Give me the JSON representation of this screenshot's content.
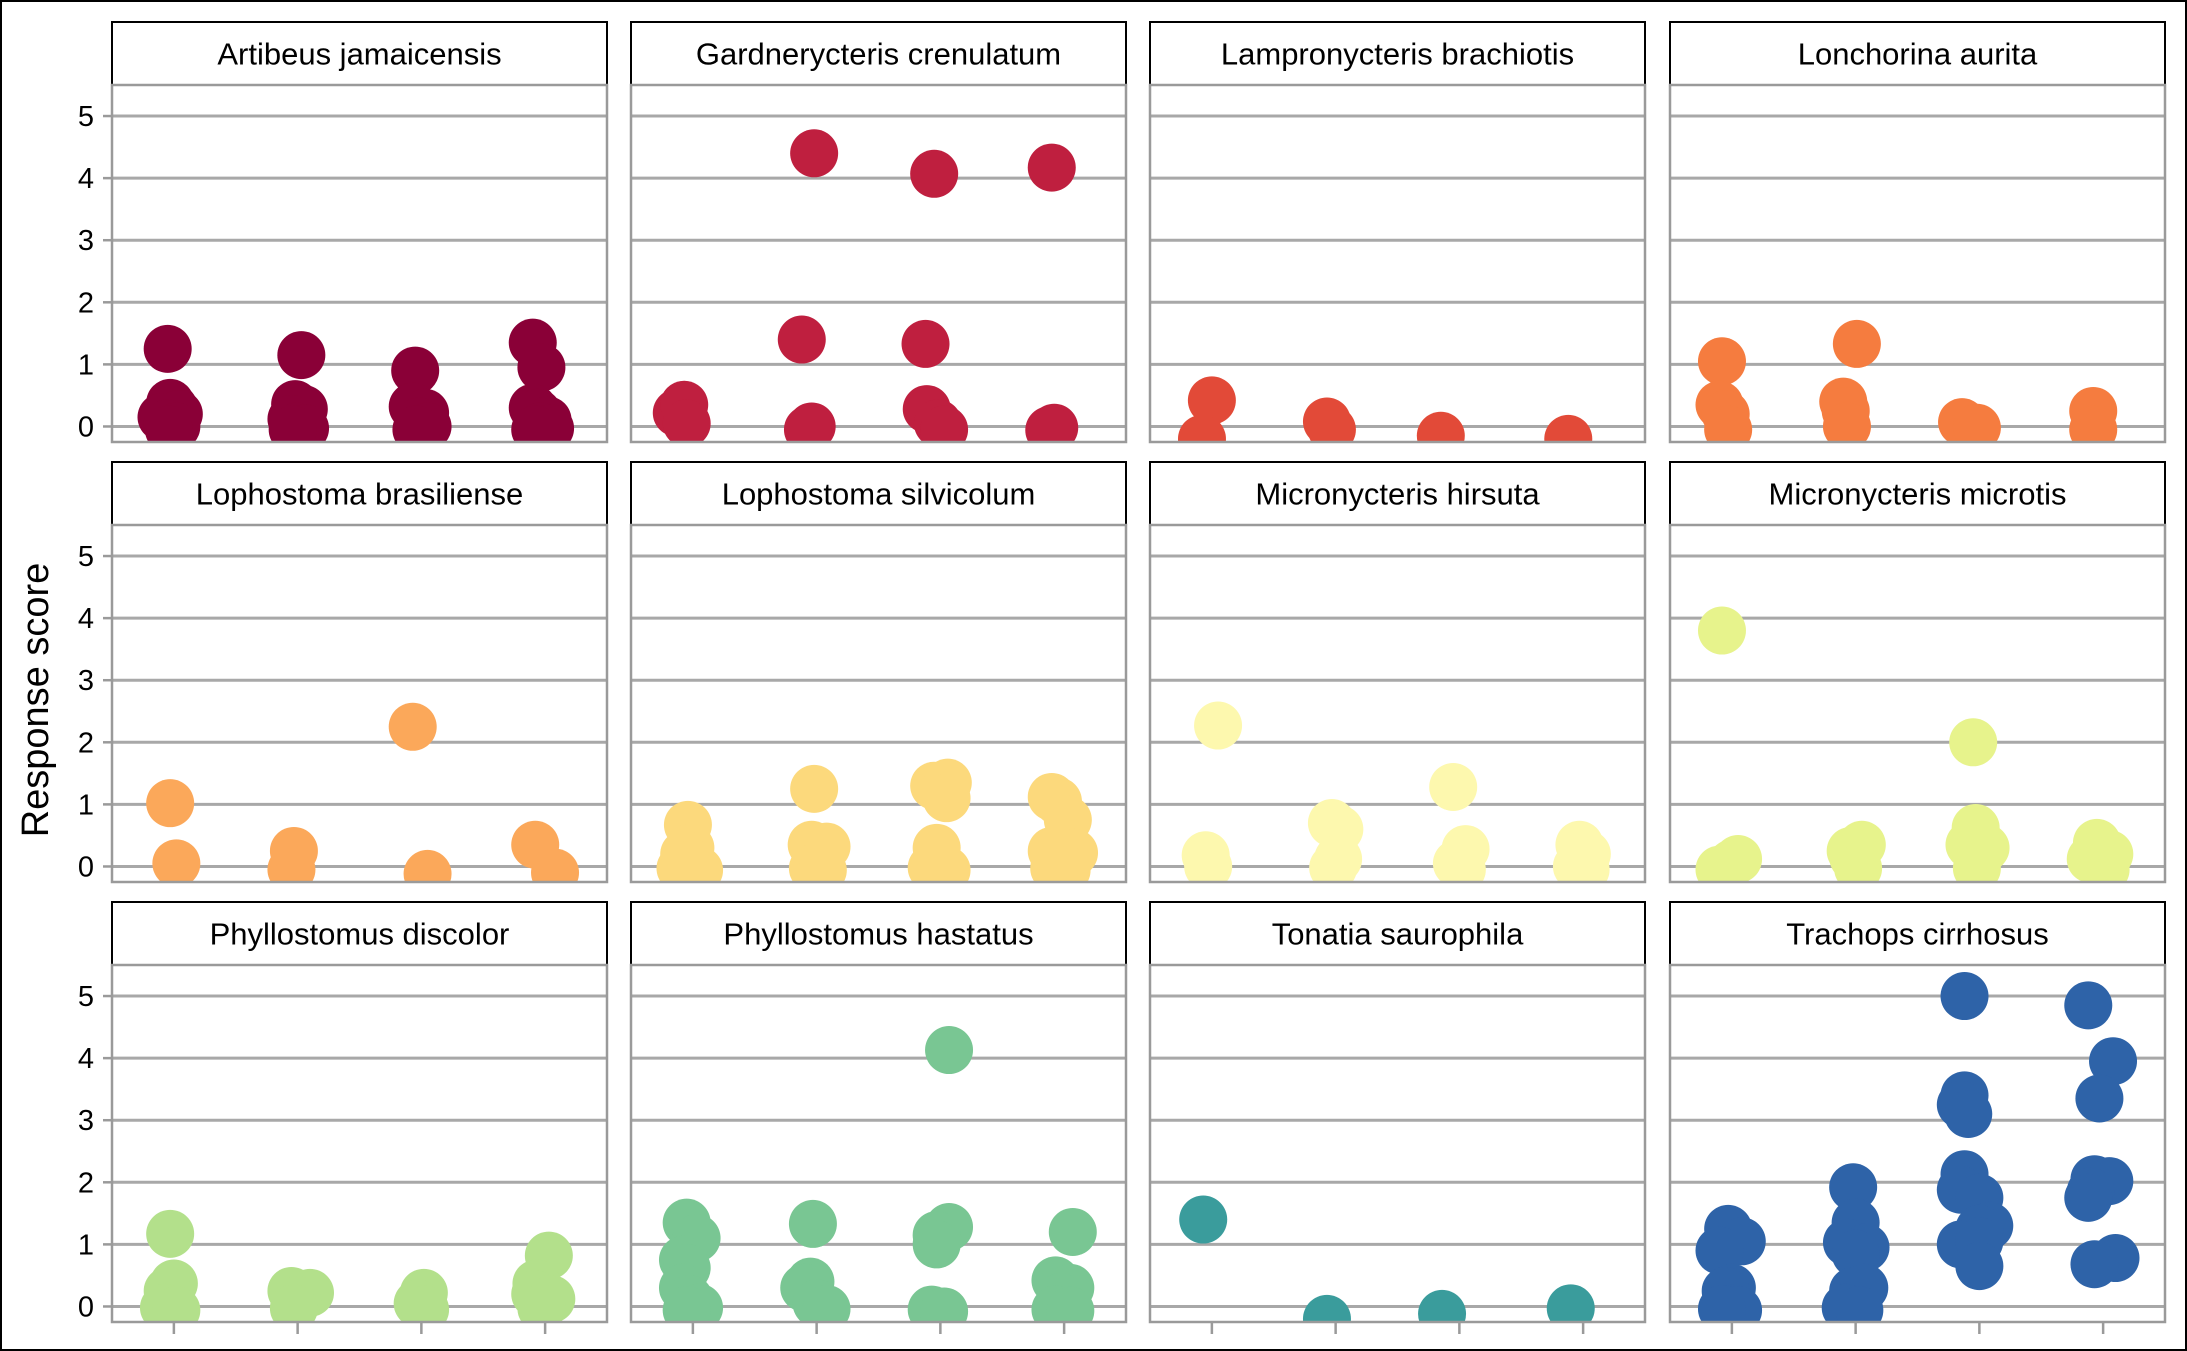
{
  "chart_data": {
    "type": "scatter",
    "ylabel": "Response score",
    "xlabel": "",
    "ylim": [
      -0.25,
      5.5
    ],
    "yticks": [
      0,
      1,
      2,
      3,
      4,
      5
    ],
    "x_categories": [
      "1",
      "2",
      "3",
      "4"
    ],
    "x_tick_labels_shown": false,
    "grid": "horizontal major gridlines",
    "legend": "none",
    "panels": [
      {
        "title": "Artibeus jamaicensis",
        "color": "#8a0037",
        "points": [
          [
            0.95,
            1.25
          ],
          [
            0.97,
            0.38
          ],
          [
            1.0,
            0.3
          ],
          [
            0.9,
            0.15
          ],
          [
            1.04,
            0.2
          ],
          [
            0.95,
            0.05
          ],
          [
            1.02,
            0.0
          ],
          [
            0.96,
            -0.05
          ],
          [
            2.03,
            1.15
          ],
          [
            1.98,
            0.36
          ],
          [
            2.05,
            0.28
          ],
          [
            1.95,
            0.12
          ],
          [
            2.0,
            0.0
          ],
          [
            2.06,
            -0.03
          ],
          [
            1.96,
            -0.05
          ],
          [
            2.95,
            0.9
          ],
          [
            2.93,
            0.32
          ],
          [
            3.03,
            0.22
          ],
          [
            2.98,
            0.08
          ],
          [
            3.05,
            0.0
          ],
          [
            2.96,
            -0.05
          ],
          [
            3.9,
            1.35
          ],
          [
            3.97,
            0.95
          ],
          [
            3.9,
            0.3
          ],
          [
            3.94,
            0.22
          ],
          [
            4.02,
            0.1
          ],
          [
            3.96,
            0.0
          ],
          [
            4.04,
            -0.03
          ],
          [
            3.92,
            -0.05
          ]
        ]
      },
      {
        "title": "Gardnerycteris crenulatum",
        "color": "#bf1f3f",
        "points": [
          [
            0.87,
            0.22
          ],
          [
            0.93,
            0.35
          ],
          [
            0.95,
            0.05
          ],
          [
            1.98,
            4.4
          ],
          [
            1.88,
            1.4
          ],
          [
            1.96,
            0.0
          ],
          [
            1.93,
            -0.05
          ],
          [
            2.95,
            4.07
          ],
          [
            2.88,
            1.33
          ],
          [
            2.89,
            0.28
          ],
          [
            2.98,
            0.05
          ],
          [
            3.03,
            -0.05
          ],
          [
            3.9,
            4.17
          ],
          [
            3.92,
            -0.02
          ],
          [
            3.88,
            -0.06
          ]
        ]
      },
      {
        "title": "Lampronycteris brachiotis",
        "color": "#e24a38",
        "points": [
          [
            1.0,
            0.42
          ],
          [
            0.92,
            -0.2
          ],
          [
            1.93,
            0.08
          ],
          [
            1.97,
            -0.05
          ],
          [
            2.85,
            -0.15
          ],
          [
            3.88,
            -0.2
          ]
        ]
      },
      {
        "title": "Lonchorina aurita",
        "color": "#f57c3f",
        "points": [
          [
            0.92,
            1.05
          ],
          [
            0.9,
            0.35
          ],
          [
            0.95,
            0.2
          ],
          [
            0.97,
            -0.05
          ],
          [
            2.01,
            1.33
          ],
          [
            1.9,
            0.4
          ],
          [
            1.92,
            0.25
          ],
          [
            1.93,
            0.0
          ],
          [
            2.86,
            0.07
          ],
          [
            2.98,
            -0.02
          ],
          [
            3.92,
            0.25
          ],
          [
            3.92,
            -0.05
          ]
        ]
      },
      {
        "title": "Lophostoma brasiliense",
        "color": "#fba85a",
        "points": [
          [
            0.97,
            1.02
          ],
          [
            1.02,
            0.05
          ],
          [
            1.97,
            0.25
          ],
          [
            1.95,
            -0.05
          ],
          [
            2.93,
            2.25
          ],
          [
            3.05,
            -0.12
          ],
          [
            3.92,
            0.35
          ],
          [
            4.08,
            -0.1
          ]
        ]
      },
      {
        "title": "Lophostoma silvicolum",
        "color": "#fcd97c",
        "points": [
          [
            0.96,
            0.67
          ],
          [
            0.98,
            0.3
          ],
          [
            0.93,
            0.2
          ],
          [
            1.0,
            0.05
          ],
          [
            0.9,
            -0.03
          ],
          [
            1.05,
            -0.06
          ],
          [
            1.98,
            1.25
          ],
          [
            1.96,
            0.35
          ],
          [
            2.08,
            0.32
          ],
          [
            2.0,
            0.22
          ],
          [
            1.97,
            -0.03
          ],
          [
            2.05,
            -0.06
          ],
          [
            2.95,
            1.3
          ],
          [
            3.06,
            1.35
          ],
          [
            3.05,
            1.1
          ],
          [
            2.97,
            0.3
          ],
          [
            2.98,
            0.12
          ],
          [
            2.93,
            -0.02
          ],
          [
            3.05,
            -0.06
          ],
          [
            3.9,
            1.12
          ],
          [
            3.95,
            1.05
          ],
          [
            4.03,
            0.75
          ],
          [
            3.9,
            0.25
          ],
          [
            4.08,
            0.22
          ],
          [
            3.92,
            -0.03
          ],
          [
            4.02,
            -0.06
          ]
        ]
      },
      {
        "title": "Micronycteris hirsuta",
        "color": "#fdf8ae",
        "points": [
          [
            1.05,
            2.27
          ],
          [
            0.95,
            0.18
          ],
          [
            0.97,
            0.0
          ],
          [
            1.97,
            0.7
          ],
          [
            2.03,
            0.6
          ],
          [
            2.02,
            0.12
          ],
          [
            1.98,
            -0.02
          ],
          [
            2.95,
            1.28
          ],
          [
            3.05,
            0.28
          ],
          [
            2.98,
            0.05
          ],
          [
            3.02,
            -0.05
          ],
          [
            3.97,
            0.35
          ],
          [
            4.03,
            0.2
          ],
          [
            3.95,
            0.0
          ],
          [
            4.02,
            -0.05
          ]
        ]
      },
      {
        "title": "Micronycteris microtis",
        "color": "#e7f38c",
        "points": [
          [
            0.92,
            3.8
          ],
          [
            1.05,
            0.12
          ],
          [
            1.0,
            0.05
          ],
          [
            0.9,
            -0.05
          ],
          [
            1.96,
            0.25
          ],
          [
            2.05,
            0.35
          ],
          [
            1.98,
            0.15
          ],
          [
            2.02,
            -0.03
          ],
          [
            2.95,
            2.0
          ],
          [
            2.97,
            0.62
          ],
          [
            2.92,
            0.35
          ],
          [
            3.05,
            0.3
          ],
          [
            2.98,
            -0.03
          ],
          [
            3.95,
            0.38
          ],
          [
            4.05,
            0.2
          ],
          [
            3.9,
            0.12
          ],
          [
            4.02,
            -0.05
          ]
        ]
      },
      {
        "title": "Phyllostomus discolor",
        "color": "#b3e08b",
        "points": [
          [
            0.97,
            1.17
          ],
          [
            1.0,
            0.37
          ],
          [
            0.95,
            0.25
          ],
          [
            0.92,
            -0.02
          ],
          [
            1.02,
            -0.06
          ],
          [
            1.95,
            0.25
          ],
          [
            2.1,
            0.22
          ],
          [
            2.0,
            0.1
          ],
          [
            1.97,
            -0.03
          ],
          [
            3.02,
            0.22
          ],
          [
            2.97,
            0.05
          ],
          [
            3.03,
            -0.05
          ],
          [
            4.03,
            0.82
          ],
          [
            3.93,
            0.37
          ],
          [
            3.92,
            0.2
          ],
          [
            4.05,
            0.12
          ],
          [
            3.97,
            -0.03
          ]
        ]
      },
      {
        "title": "Phyllostomus hastatus",
        "color": "#79c693",
        "points": [
          [
            0.95,
            1.35
          ],
          [
            1.03,
            1.1
          ],
          [
            0.92,
            0.75
          ],
          [
            0.95,
            0.62
          ],
          [
            0.92,
            0.3
          ],
          [
            0.97,
            0.12
          ],
          [
            1.05,
            -0.02
          ],
          [
            0.95,
            -0.06
          ],
          [
            1.97,
            1.33
          ],
          [
            1.95,
            0.4
          ],
          [
            1.9,
            0.3
          ],
          [
            2.0,
            0.05
          ],
          [
            2.08,
            -0.04
          ],
          [
            3.07,
            4.13
          ],
          [
            3.07,
            1.28
          ],
          [
            2.97,
            1.15
          ],
          [
            2.97,
            1.0
          ],
          [
            2.93,
            -0.05
          ],
          [
            3.03,
            -0.08
          ],
          [
            4.07,
            1.2
          ],
          [
            3.93,
            0.42
          ],
          [
            4.05,
            0.3
          ],
          [
            3.97,
            0.15
          ],
          [
            3.93,
            -0.05
          ],
          [
            4.05,
            -0.07
          ]
        ]
      },
      {
        "title": "Tonatia saurophila",
        "color": "#3a9c9c",
        "points": [
          [
            0.93,
            1.4
          ],
          [
            1.93,
            -0.2
          ],
          [
            2.86,
            -0.12
          ],
          [
            3.9,
            -0.03
          ]
        ]
      },
      {
        "title": "Trachops cirrhosus",
        "color": "#2e63a8",
        "points": [
          [
            0.97,
            1.25
          ],
          [
            1.08,
            1.05
          ],
          [
            0.9,
            0.9
          ],
          [
            1.0,
            0.3
          ],
          [
            0.95,
            0.25
          ],
          [
            1.0,
            -0.03
          ],
          [
            1.05,
            -0.06
          ],
          [
            0.92,
            -0.04
          ],
          [
            1.98,
            1.92
          ],
          [
            2.0,
            1.35
          ],
          [
            1.93,
            1.03
          ],
          [
            2.08,
            0.95
          ],
          [
            2.0,
            0.85
          ],
          [
            1.98,
            0.25
          ],
          [
            2.07,
            0.3
          ],
          [
            1.92,
            -0.02
          ],
          [
            2.03,
            -0.06
          ],
          [
            2.88,
            5.0
          ],
          [
            2.88,
            3.4
          ],
          [
            2.85,
            3.25
          ],
          [
            2.91,
            3.1
          ],
          [
            2.88,
            2.13
          ],
          [
            2.85,
            1.88
          ],
          [
            3.0,
            1.75
          ],
          [
            3.08,
            1.3
          ],
          [
            3.0,
            1.25
          ],
          [
            2.85,
            1.0
          ],
          [
            3.0,
            1.05
          ],
          [
            3.0,
            0.65
          ],
          [
            3.88,
            4.85
          ],
          [
            4.08,
            3.95
          ],
          [
            3.97,
            3.35
          ],
          [
            3.93,
            2.05
          ],
          [
            4.05,
            2.02
          ],
          [
            3.9,
            1.85
          ],
          [
            3.88,
            1.75
          ],
          [
            4.1,
            0.78
          ],
          [
            3.93,
            0.68
          ]
        ]
      }
    ]
  }
}
